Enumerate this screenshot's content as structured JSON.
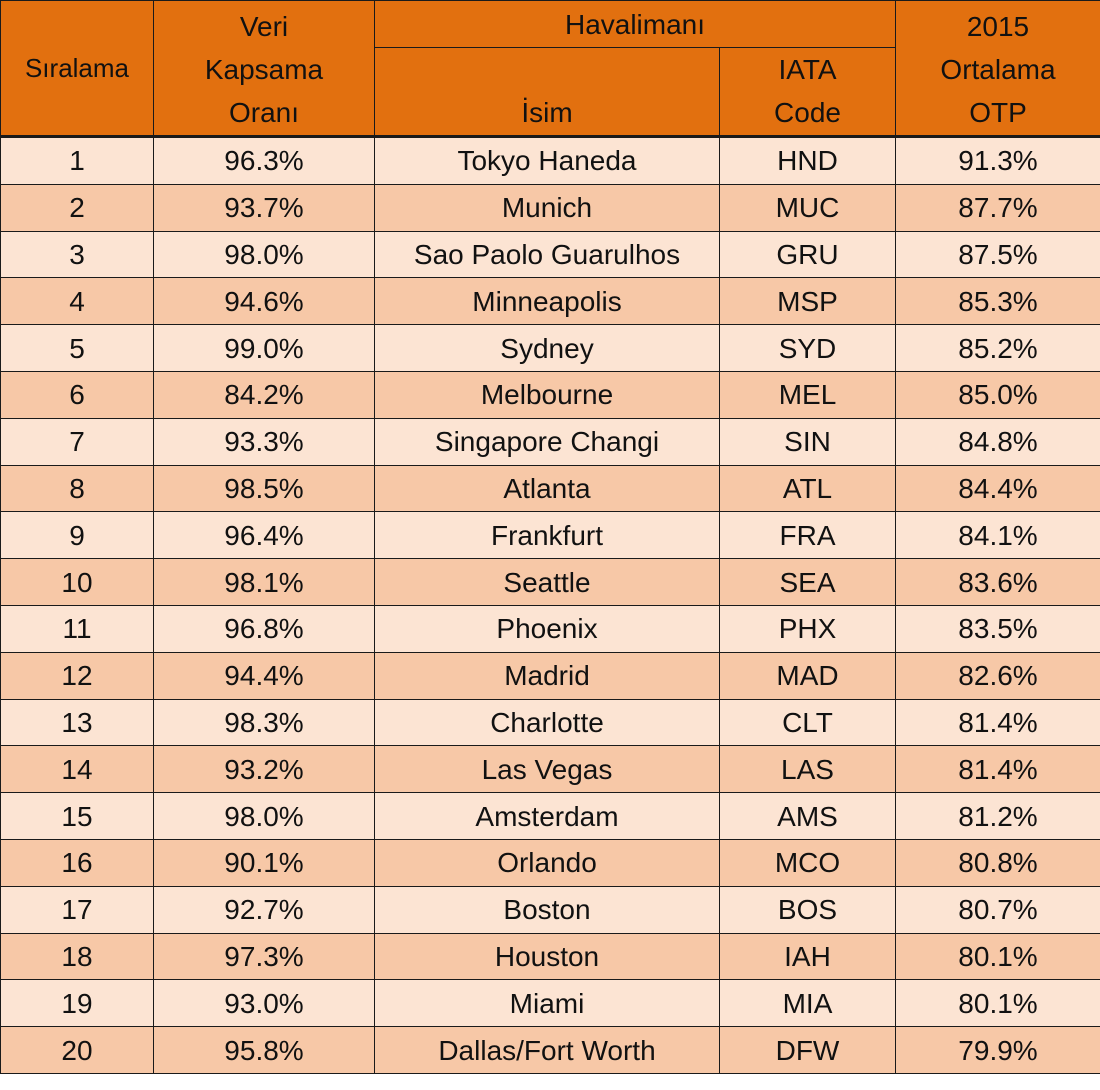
{
  "header": {
    "rank": "Sıralama",
    "coverage": [
      "Veri",
      "Kapsama",
      "Oranı"
    ],
    "airport_group": "Havalimanı",
    "name": "İsim",
    "iata": [
      "IATA",
      "Code"
    ],
    "otp": [
      "2015",
      "Ortalama",
      "OTP"
    ]
  },
  "rows": [
    {
      "rank": "1",
      "coverage": "96.3%",
      "name": "Tokyo Haneda",
      "iata": "HND",
      "otp": "91.3%"
    },
    {
      "rank": "2",
      "coverage": "93.7%",
      "name": "Munich",
      "iata": "MUC",
      "otp": "87.7%"
    },
    {
      "rank": "3",
      "coverage": "98.0%",
      "name": "Sao Paolo Guarulhos",
      "iata": "GRU",
      "otp": "87.5%"
    },
    {
      "rank": "4",
      "coverage": "94.6%",
      "name": "Minneapolis",
      "iata": "MSP",
      "otp": "85.3%"
    },
    {
      "rank": "5",
      "coverage": "99.0%",
      "name": "Sydney",
      "iata": "SYD",
      "otp": "85.2%"
    },
    {
      "rank": "6",
      "coverage": "84.2%",
      "name": "Melbourne",
      "iata": "MEL",
      "otp": "85.0%"
    },
    {
      "rank": "7",
      "coverage": "93.3%",
      "name": "Singapore Changi",
      "iata": "SIN",
      "otp": "84.8%"
    },
    {
      "rank": "8",
      "coverage": "98.5%",
      "name": "Atlanta",
      "iata": "ATL",
      "otp": "84.4%"
    },
    {
      "rank": "9",
      "coverage": "96.4%",
      "name": "Frankfurt",
      "iata": "FRA",
      "otp": "84.1%"
    },
    {
      "rank": "10",
      "coverage": "98.1%",
      "name": "Seattle",
      "iata": "SEA",
      "otp": "83.6%"
    },
    {
      "rank": "11",
      "coverage": "96.8%",
      "name": "Phoenix",
      "iata": "PHX",
      "otp": "83.5%"
    },
    {
      "rank": "12",
      "coverage": "94.4%",
      "name": "Madrid",
      "iata": "MAD",
      "otp": "82.6%"
    },
    {
      "rank": "13",
      "coverage": "98.3%",
      "name": "Charlotte",
      "iata": "CLT",
      "otp": "81.4%"
    },
    {
      "rank": "14",
      "coverage": "93.2%",
      "name": "Las Vegas",
      "iata": "LAS",
      "otp": "81.4%"
    },
    {
      "rank": "15",
      "coverage": "98.0%",
      "name": "Amsterdam",
      "iata": "AMS",
      "otp": "81.2%"
    },
    {
      "rank": "16",
      "coverage": "90.1%",
      "name": "Orlando",
      "iata": "MCO",
      "otp": "80.8%"
    },
    {
      "rank": "17",
      "coverage": "92.7%",
      "name": "Boston",
      "iata": "BOS",
      "otp": "80.7%"
    },
    {
      "rank": "18",
      "coverage": "97.3%",
      "name": "Houston",
      "iata": "IAH",
      "otp": "80.1%"
    },
    {
      "rank": "19",
      "coverage": "93.0%",
      "name": "Miami",
      "iata": "MIA",
      "otp": "80.1%"
    },
    {
      "rank": "20",
      "coverage": "95.8%",
      "name": "Dallas/Fort Worth",
      "iata": "DFW",
      "otp": "79.9%"
    }
  ],
  "colors": {
    "header_bg": "#e2700f",
    "row_light": "#fce4d3",
    "row_dark": "#f7c8a7",
    "border": "#1a1a1a"
  }
}
